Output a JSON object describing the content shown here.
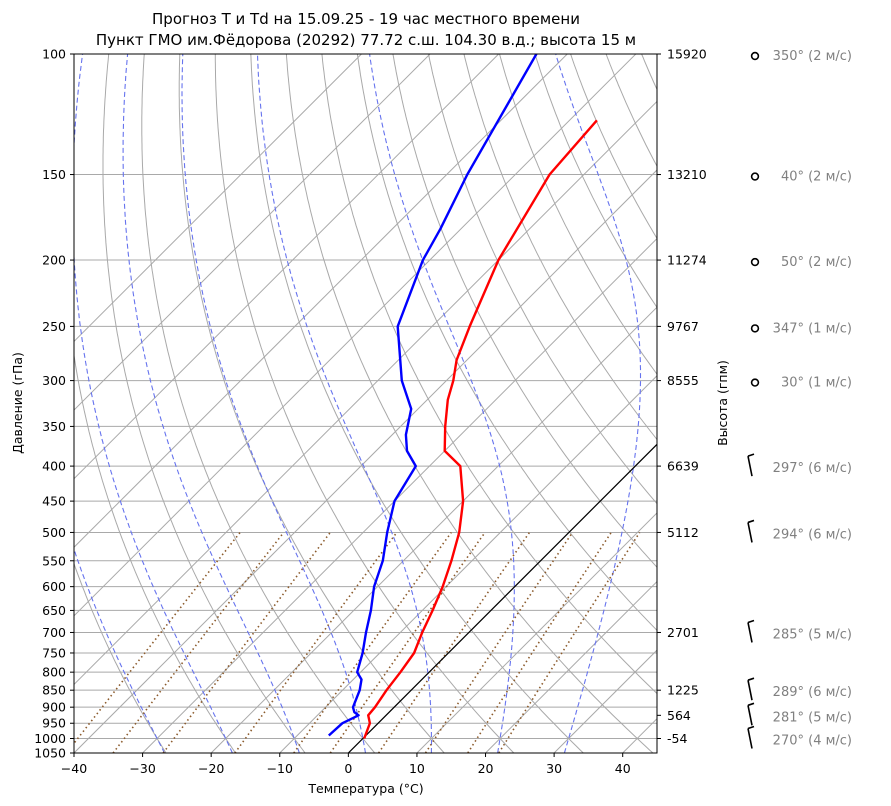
{
  "chart_data": {
    "type": "line",
    "title_line1": "Прогноз T и Td на 15.09.25 - 19 час местного времени",
    "title_line2": "Пункт ГМО им.Фёдорова (20292) 77.72 с.ш. 104.30 в.д.; высота 15 м",
    "xlabel": "Температура (°C)",
    "ylabel": "Давление (гПа)",
    "y2label": "Высота (гпм)",
    "xlim": [
      -40,
      45
    ],
    "ylim": [
      1050,
      100
    ],
    "yscale": "log",
    "x_ticks": [
      "−40",
      "−30",
      "−20",
      "−10",
      "0",
      "10",
      "20",
      "30",
      "40"
    ],
    "x_tick_values": [
      -40,
      -30,
      -20,
      -10,
      0,
      10,
      20,
      30,
      40
    ],
    "p_ticks": [
      1050,
      1000,
      950,
      900,
      850,
      800,
      750,
      700,
      650,
      600,
      550,
      500,
      450,
      400,
      350,
      300,
      250,
      200,
      150,
      100
    ],
    "height_ticks": [
      {
        "p": 100,
        "label": "15920"
      },
      {
        "p": 150,
        "label": "13210"
      },
      {
        "p": 200,
        "label": "11274"
      },
      {
        "p": 250,
        "label": "9767"
      },
      {
        "p": 300,
        "label": "8555"
      },
      {
        "p": 400,
        "label": "6639"
      },
      {
        "p": 500,
        "label": "5112"
      },
      {
        "p": 700,
        "label": "2701"
      },
      {
        "p": 850,
        "label": "1225"
      },
      {
        "p": 925,
        "label": "564"
      },
      {
        "p": 1000,
        "label": "-54"
      }
    ],
    "skew": 45,
    "series": [
      {
        "key": "T",
        "color": "#ff0000",
        "points": [
          [
            1000,
            0.2
          ],
          [
            950,
            -1.2
          ],
          [
            925,
            -2.6
          ],
          [
            900,
            -2.8
          ],
          [
            850,
            -3.6
          ],
          [
            800,
            -4.2
          ],
          [
            750,
            -5.0
          ],
          [
            700,
            -6.8
          ],
          [
            650,
            -8.5
          ],
          [
            600,
            -10.5
          ],
          [
            550,
            -13.0
          ],
          [
            500,
            -16.0
          ],
          [
            450,
            -20.0
          ],
          [
            400,
            -25.5
          ],
          [
            380,
            -30.0
          ],
          [
            350,
            -33.5
          ],
          [
            320,
            -37.0
          ],
          [
            300,
            -39.0
          ],
          [
            280,
            -41.5
          ],
          [
            250,
            -44.5
          ],
          [
            200,
            -50.0
          ],
          [
            150,
            -55.0
          ],
          [
            125,
            -56.0
          ]
        ]
      },
      {
        "key": "Td",
        "color": "#0000ff",
        "points": [
          [
            990,
            -5.4
          ],
          [
            950,
            -5.2
          ],
          [
            925,
            -4.0
          ],
          [
            915,
            -5.1
          ],
          [
            900,
            -6.0
          ],
          [
            850,
            -7.5
          ],
          [
            820,
            -8.8
          ],
          [
            800,
            -10.5
          ],
          [
            750,
            -12.5
          ],
          [
            700,
            -15.0
          ],
          [
            650,
            -17.5
          ],
          [
            600,
            -20.5
          ],
          [
            550,
            -23.0
          ],
          [
            500,
            -26.5
          ],
          [
            450,
            -30.0
          ],
          [
            400,
            -32.0
          ],
          [
            380,
            -35.5
          ],
          [
            360,
            -38.0
          ],
          [
            330,
            -41.0
          ],
          [
            300,
            -46.5
          ],
          [
            250,
            -55.0
          ],
          [
            200,
            -61.0
          ],
          [
            180,
            -63.0
          ],
          [
            150,
            -67.0
          ],
          [
            100,
            -74.5
          ]
        ]
      }
    ],
    "isotherm_values": [
      -100,
      -90,
      -80,
      -70,
      -60,
      -50,
      -40,
      -30,
      -20,
      -10,
      0,
      10,
      20,
      30,
      40
    ],
    "dry_adiabat_thetas_c": [
      -30,
      -20,
      -10,
      0,
      10,
      20,
      30,
      40,
      50,
      60,
      70,
      80,
      90,
      100,
      110,
      120,
      130,
      140,
      150,
      160,
      170,
      180
    ],
    "moist_adiabat_starts_c": [
      -30,
      -20,
      -10,
      0,
      10,
      20,
      30
    ],
    "mixing_ratios_gkg": [
      0.1,
      0.2,
      0.4,
      1,
      2,
      3,
      5,
      8,
      12,
      16
    ],
    "colors": {
      "isotherm": "#a9a9a9",
      "dry_adiabat": "#a9a9a9",
      "moist_adiabat": "#6673ee",
      "mixing_ratio": "#8b5a2b",
      "zero_isotherm": "#000000",
      "wind_text": "#808080"
    },
    "wind": [
      {
        "p": 100,
        "dir": 350,
        "speed": 2,
        "calm": true,
        "label": "350° (2 м/с)"
      },
      {
        "p": 150,
        "dir": 40,
        "speed": 2,
        "calm": true,
        "label": "40° (2 м/с)"
      },
      {
        "p": 200,
        "dir": 50,
        "speed": 2,
        "calm": true,
        "label": "50° (2 м/с)"
      },
      {
        "p": 250,
        "dir": 347,
        "speed": 1,
        "calm": true,
        "label": "347° (1 м/с)"
      },
      {
        "p": 300,
        "dir": 30,
        "speed": 1,
        "calm": true,
        "label": "30° (1 м/с)"
      },
      {
        "p": 400,
        "dir": 297,
        "speed": 6,
        "calm": false,
        "label": "297° (6 м/с)"
      },
      {
        "p": 500,
        "dir": 294,
        "speed": 6,
        "calm": false,
        "label": "294° (6 м/с)"
      },
      {
        "p": 700,
        "dir": 285,
        "speed": 5,
        "calm": false,
        "label": "285° (5 м/с)"
      },
      {
        "p": 850,
        "dir": 289,
        "speed": 6,
        "calm": false,
        "label": "289° (6 м/с)"
      },
      {
        "p": 925,
        "dir": 281,
        "speed": 5,
        "calm": false,
        "label": "281° (5 м/с)"
      },
      {
        "p": 1000,
        "dir": 270,
        "speed": 4,
        "calm": false,
        "label": "270° (4 м/с)"
      }
    ]
  }
}
